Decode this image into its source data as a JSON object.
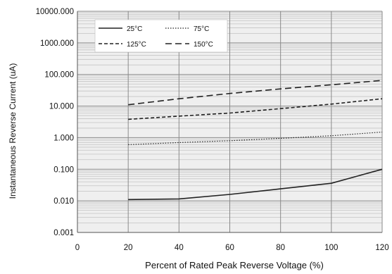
{
  "chart_data": {
    "type": "line",
    "xlabel": "Percent of  Rated Peak Reverse Voltage (%)",
    "ylabel": "Instantaneous Reverse Current (uA)",
    "xlim": [
      0,
      120
    ],
    "ylim": [
      0.001,
      10000
    ],
    "yscale": "log",
    "grid": true,
    "legend_position": "top-left",
    "x_ticks": [
      0,
      20,
      40,
      60,
      80,
      100,
      120
    ],
    "x_tick_labels": [
      "0",
      "20",
      "40",
      "60",
      "80",
      "100",
      "120"
    ],
    "y_ticks": [
      0.001,
      0.01,
      0.1,
      1,
      10,
      100,
      1000,
      10000
    ],
    "y_tick_labels": [
      "0.001",
      "0.010",
      "0.100",
      "1.000",
      "10.000",
      "100.000",
      "1000.000",
      "10000.000"
    ],
    "series": [
      {
        "name": "25°C",
        "style": "solid",
        "x": [
          20,
          40,
          60,
          80,
          100,
          120
        ],
        "y": [
          0.011,
          0.0115,
          0.016,
          0.024,
          0.036,
          0.1
        ]
      },
      {
        "name": "75°C",
        "style": "dotted",
        "x": [
          20,
          40,
          60,
          80,
          100,
          120
        ],
        "y": [
          0.6,
          0.7,
          0.8,
          0.95,
          1.15,
          1.5
        ]
      },
      {
        "name": "125°C",
        "style": "dashed",
        "x": [
          20,
          40,
          60,
          80,
          100,
          120
        ],
        "y": [
          3.8,
          4.8,
          6.0,
          8.3,
          11.5,
          17.0
        ]
      },
      {
        "name": "150°C",
        "style": "longdash",
        "x": [
          20,
          40,
          60,
          80,
          100,
          120
        ],
        "y": [
          11.0,
          17.0,
          25.0,
          35.0,
          47.0,
          65.0
        ]
      }
    ]
  }
}
